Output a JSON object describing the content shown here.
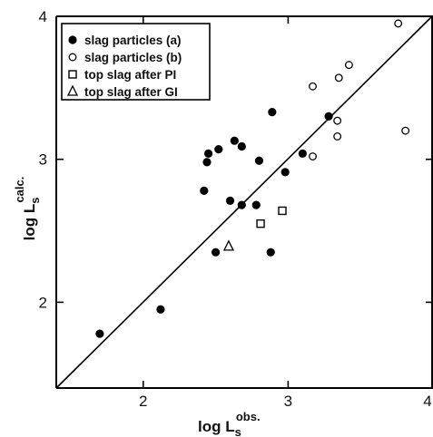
{
  "chart_data": {
    "type": "scatter",
    "title": "",
    "xlabel": {
      "main": "log L",
      "sub": "s",
      "sup": "obs."
    },
    "ylabel": {
      "main": "log L",
      "sub": "s",
      "sup": "calc."
    },
    "xlim": [
      1.4,
      4.0
    ],
    "ylim": [
      1.4,
      4.0
    ],
    "x_ticks": [
      2,
      3,
      4
    ],
    "x_tick_labels": [
      "2",
      "3",
      "4"
    ],
    "y_ticks": [
      2,
      3,
      4
    ],
    "y_tick_labels": [
      "2",
      "3",
      "4"
    ],
    "grid": false,
    "legend_position": "top-left",
    "reference_line": {
      "from": [
        1.4,
        1.4
      ],
      "to": [
        4.0,
        4.0
      ]
    },
    "series": [
      {
        "name": "slag particles (a)",
        "marker": "filled-circle",
        "points": [
          [
            1.7,
            1.78
          ],
          [
            2.12,
            1.95
          ],
          [
            2.42,
            2.78
          ],
          [
            2.44,
            2.98
          ],
          [
            2.45,
            3.04
          ],
          [
            2.5,
            2.35
          ],
          [
            2.52,
            3.07
          ],
          [
            2.6,
            2.71
          ],
          [
            2.63,
            3.13
          ],
          [
            2.68,
            2.68
          ],
          [
            2.68,
            3.09
          ],
          [
            2.78,
            2.68
          ],
          [
            2.8,
            2.99
          ],
          [
            2.88,
            2.35
          ],
          [
            2.89,
            3.33
          ],
          [
            2.98,
            2.91
          ],
          [
            3.1,
            3.04
          ],
          [
            3.28,
            3.3
          ]
        ]
      },
      {
        "name": "slag particles (b)",
        "marker": "open-circle",
        "points": [
          [
            3.17,
            3.02
          ],
          [
            3.17,
            3.51
          ],
          [
            3.34,
            3.16
          ],
          [
            3.34,
            3.27
          ],
          [
            3.35,
            3.57
          ],
          [
            3.42,
            3.66
          ],
          [
            3.76,
            3.95
          ],
          [
            3.81,
            3.2
          ]
        ]
      },
      {
        "name": "top slag after PI",
        "marker": "open-square",
        "points": [
          [
            2.81,
            2.55
          ],
          [
            2.96,
            2.64
          ]
        ]
      },
      {
        "name": "top slag after GI",
        "marker": "open-triangle",
        "points": [
          [
            2.59,
            2.39
          ]
        ]
      }
    ]
  }
}
